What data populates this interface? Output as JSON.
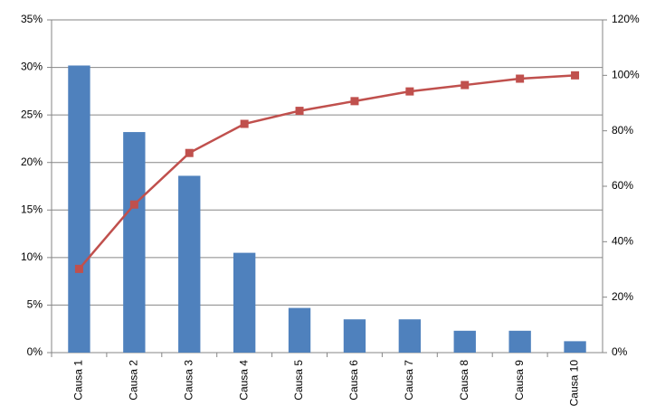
{
  "chart_data": {
    "type": "bar-line",
    "categories": [
      "Causa 1",
      "Causa 2",
      "Causa 3",
      "Causa 4",
      "Causa 5",
      "Causa 6",
      "Causa 7",
      "Causa 8",
      "Causa 9",
      "Causa 10"
    ],
    "series": [
      {
        "type": "bar",
        "color": "#4f81bd",
        "values": [
          30.2,
          23.2,
          18.6,
          10.5,
          4.7,
          3.5,
          3.5,
          2.3,
          2.3,
          1.2
        ]
      },
      {
        "type": "line",
        "axis": "y2",
        "color": "#c0504d",
        "values": [
          30.2,
          53.4,
          72,
          82.5,
          87.2,
          90.7,
          94.2,
          96.5,
          98.8,
          100
        ]
      }
    ],
    "ylim": [
      0,
      35
    ],
    "yticks": [
      {
        "value": 0,
        "label": "0%"
      },
      {
        "value": 5,
        "label": "5%"
      },
      {
        "value": 10,
        "label": "10%"
      },
      {
        "value": 15,
        "label": "15%"
      },
      {
        "value": 20,
        "label": "20%"
      },
      {
        "value": 25,
        "label": "25%"
      },
      {
        "value": 30,
        "label": "30%"
      },
      {
        "value": 35,
        "label": "35%"
      }
    ],
    "y2lim": [
      0,
      120
    ],
    "y2ticks": [
      {
        "value": 0,
        "label": "0%"
      },
      {
        "value": 20,
        "label": "20%"
      },
      {
        "value": 40,
        "label": "40%"
      },
      {
        "value": 60,
        "label": "60%"
      },
      {
        "value": 80,
        "label": "80%"
      },
      {
        "value": 100,
        "label": "100%"
      },
      {
        "value": 120,
        "label": "120%"
      }
    ],
    "grid": true
  }
}
